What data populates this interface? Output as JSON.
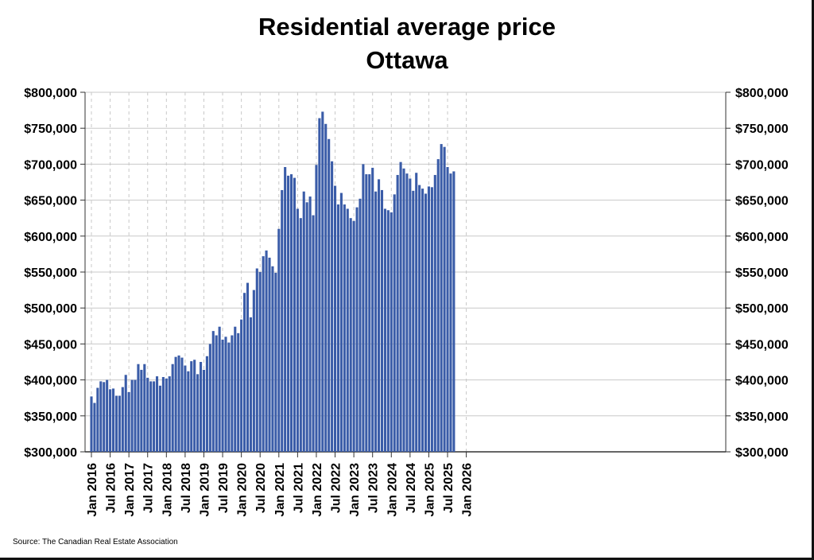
{
  "chart_data": {
    "type": "bar",
    "title": "Residential average price",
    "subtitle": "Ottawa",
    "xlabel": "",
    "ylabel": "",
    "source": "Source: The Canadian Real Estate Association",
    "colors": {
      "bar": "#3a5ca8",
      "grid": "#c8c8c8",
      "axis": "#333333"
    },
    "ylim": [
      300000,
      800000
    ],
    "yticks": [
      300000,
      350000,
      400000,
      450000,
      500000,
      550000,
      600000,
      650000,
      700000,
      750000,
      800000
    ],
    "ytick_labels": [
      "$300,000",
      "$350,000",
      "$400,000",
      "$450,000",
      "$500,000",
      "$550,000",
      "$600,000",
      "$650,000",
      "$700,000",
      "$750,000",
      "$800,000"
    ],
    "xticks": [
      "Jan 2016",
      "Jul 2016",
      "Jan 2017",
      "Jul 2017",
      "Jan 2018",
      "Jul 2018",
      "Jan 2019",
      "Jul 2019",
      "Jan 2020",
      "Jul 2020",
      "Jan 2021",
      "Jul 2021",
      "Jan 2022",
      "Jul 2022",
      "Jan 2023",
      "Jul 2023",
      "Jan 2024",
      "Jul 2024",
      "Jan 2025",
      "Jul 2025",
      "Jan 2026"
    ],
    "start": "Jan 2016",
    "period": "monthly",
    "values": [
      377000,
      368000,
      389000,
      398000,
      397000,
      400000,
      387000,
      388000,
      378000,
      378000,
      390000,
      407000,
      383000,
      400000,
      400000,
      422000,
      414000,
      422000,
      403000,
      398000,
      398000,
      405000,
      392000,
      404000,
      402000,
      405000,
      422000,
      432000,
      434000,
      431000,
      420000,
      412000,
      426000,
      428000,
      408000,
      425000,
      414000,
      433000,
      450000,
      468000,
      462000,
      474000,
      456000,
      460000,
      452000,
      462000,
      474000,
      465000,
      484000,
      521000,
      535000,
      487000,
      525000,
      555000,
      550000,
      572000,
      580000,
      570000,
      558000,
      549000,
      610000,
      664000,
      696000,
      684000,
      686000,
      681000,
      638000,
      625000,
      662000,
      647000,
      655000,
      629000,
      699000,
      764000,
      773000,
      756000,
      735000,
      704000,
      670000,
      644000,
      660000,
      644000,
      638000,
      625000,
      621000,
      640000,
      652000,
      700000,
      686000,
      686000,
      695000,
      662000,
      679000,
      664000,
      638000,
      636000,
      633000,
      658000,
      685000,
      703000,
      694000,
      687000,
      680000,
      663000,
      688000,
      671000,
      666000,
      659000,
      669000,
      668000,
      685000,
      707000,
      728000,
      724000,
      696000,
      687000,
      690000
    ]
  }
}
